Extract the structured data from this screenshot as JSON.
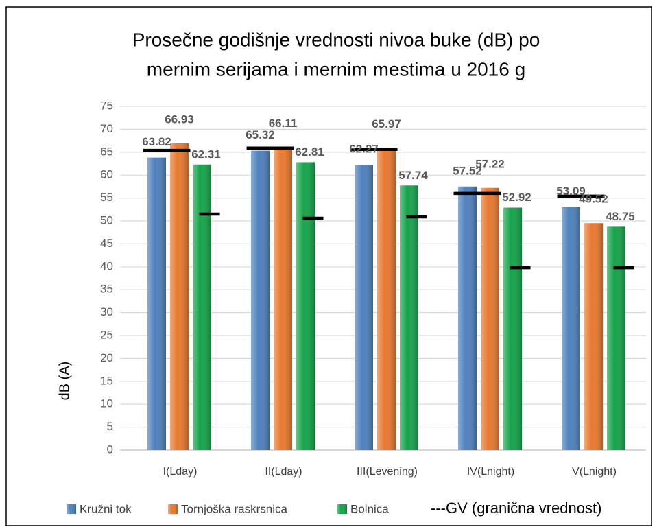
{
  "chart_data": {
    "type": "bar",
    "title": [
      "Prosečne godišnje vrednosti nivoa buke (dB) po",
      "mernim serijama i mernim mestima u 2016 g"
    ],
    "y_label": "dB (A)",
    "categories": [
      "I(Lday)",
      "II(Lday)",
      "III(Levening)",
      "IV(Lnight)",
      "V(Lnight)"
    ],
    "series": [
      {
        "name": "Kružni tok",
        "color": "#4f81bd",
        "values": [
          63.82,
          65.32,
          62.27,
          57.52,
          53.09
        ]
      },
      {
        "name": "Tornjoška raskrsnica",
        "color": "#e8792f",
        "values": [
          66.93,
          66.11,
          65.97,
          57.22,
          49.52
        ]
      },
      {
        "name": "Bolnica",
        "color": "#16a34a",
        "values": [
          62.31,
          62.81,
          57.74,
          52.92,
          48.75
        ]
      }
    ],
    "gv": {
      "name": "---GV (granična vrednost)",
      "color": "#000000",
      "traffic": [
        65.4,
        65.9,
        65.6,
        56,
        55.4
      ],
      "hospital": [
        51.5,
        50.6,
        50.9,
        39.8,
        39.8
      ]
    },
    "ylim": [
      0,
      75
    ],
    "yticks": [
      0,
      5,
      10,
      15,
      20,
      25,
      30,
      35,
      40,
      45,
      50,
      55,
      60,
      65,
      70,
      75
    ],
    "grid": true
  }
}
